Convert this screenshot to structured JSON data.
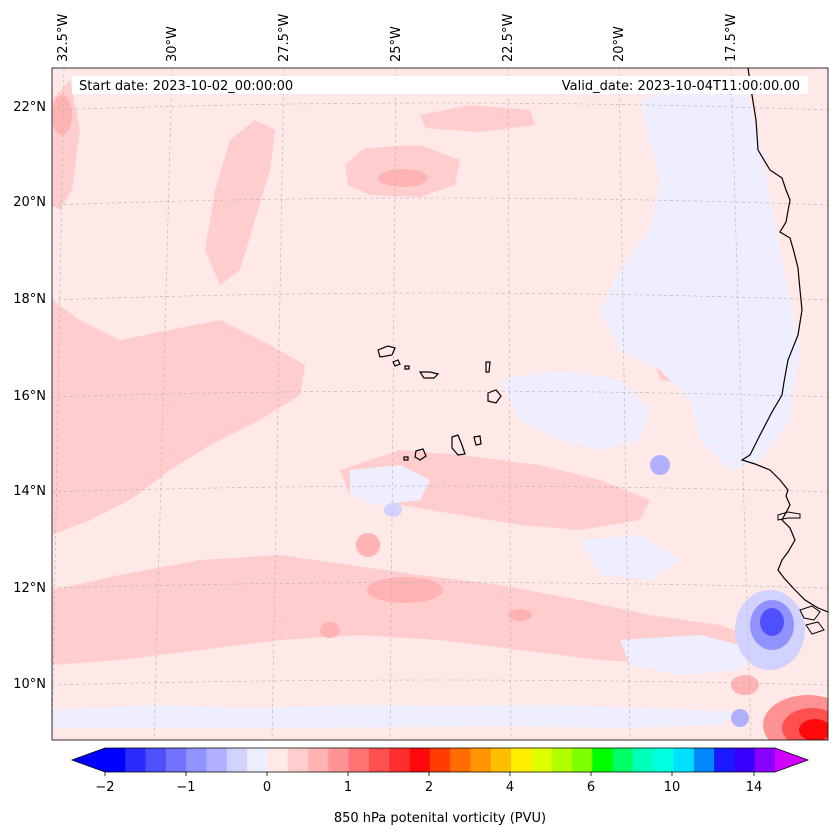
{
  "info": {
    "start_date": "Start date: 2023-10-02_00:00:00",
    "valid_date": "Valid_date: 2023-10-04T11:00:00.00"
  },
  "longitude_labels": [
    "32.5°W",
    "30°W",
    "27.5°W",
    "25°W",
    "22.5°W",
    "20°W",
    "17.5°W"
  ],
  "latitude_labels": [
    "22°N",
    "20°N",
    "18°N",
    "16°N",
    "14°N",
    "12°N",
    "10°N"
  ],
  "colorbar": {
    "label": "850 hPa potenital vorticity (PVU)",
    "tick_labels": [
      "−2",
      "−1",
      "0",
      "1",
      "2",
      "4",
      "6",
      "10",
      "14"
    ],
    "colors": [
      "#0000ff",
      "#2b2bff",
      "#5050ff",
      "#7373ff",
      "#9292ff",
      "#b0b0ff",
      "#d2d2ff",
      "#eeeeff",
      "#ffe8e8",
      "#ffcdcd",
      "#ffb3b3",
      "#ff9393",
      "#ff7272",
      "#ff5050",
      "#ff2e2e",
      "#ff0a0a",
      "#ff3d00",
      "#ff6d00",
      "#ff9600",
      "#ffbf00",
      "#ffee00",
      "#ddff00",
      "#b2ff00",
      "#7fff00",
      "#00ff00",
      "#00ff66",
      "#00ffbb",
      "#00ffdd",
      "#00e1ff",
      "#0088ff",
      "#1a1aff",
      "#3a00ff",
      "#8a00ff"
    ],
    "under_color": "#0000ff",
    "over_color": "#d000ff"
  },
  "colors": {
    "background_field": "#ffe8e8",
    "coastline": "#000000",
    "gridline": "#b0b0b0"
  },
  "chart_data": {
    "type": "heatmap",
    "title": "",
    "variable": "850 hPa potenital vorticity (PVU)",
    "extent_lon": [
      -33,
      -15
    ],
    "extent_lat": [
      9,
      23
    ],
    "contour_levels": [
      -2,
      -1.75,
      -1.5,
      -1.25,
      -1,
      -0.75,
      -0.5,
      -0.25,
      0,
      0.25,
      0.5,
      0.75,
      1,
      1.25,
      1.5,
      1.75,
      2,
      2.5,
      3,
      3.5,
      4,
      4.5,
      5,
      5.5,
      6,
      7,
      8,
      9,
      10,
      11,
      12,
      13,
      14
    ],
    "colorbar_ticks": [
      -2,
      -1,
      0,
      1,
      2,
      4,
      6,
      10,
      14
    ]
  }
}
